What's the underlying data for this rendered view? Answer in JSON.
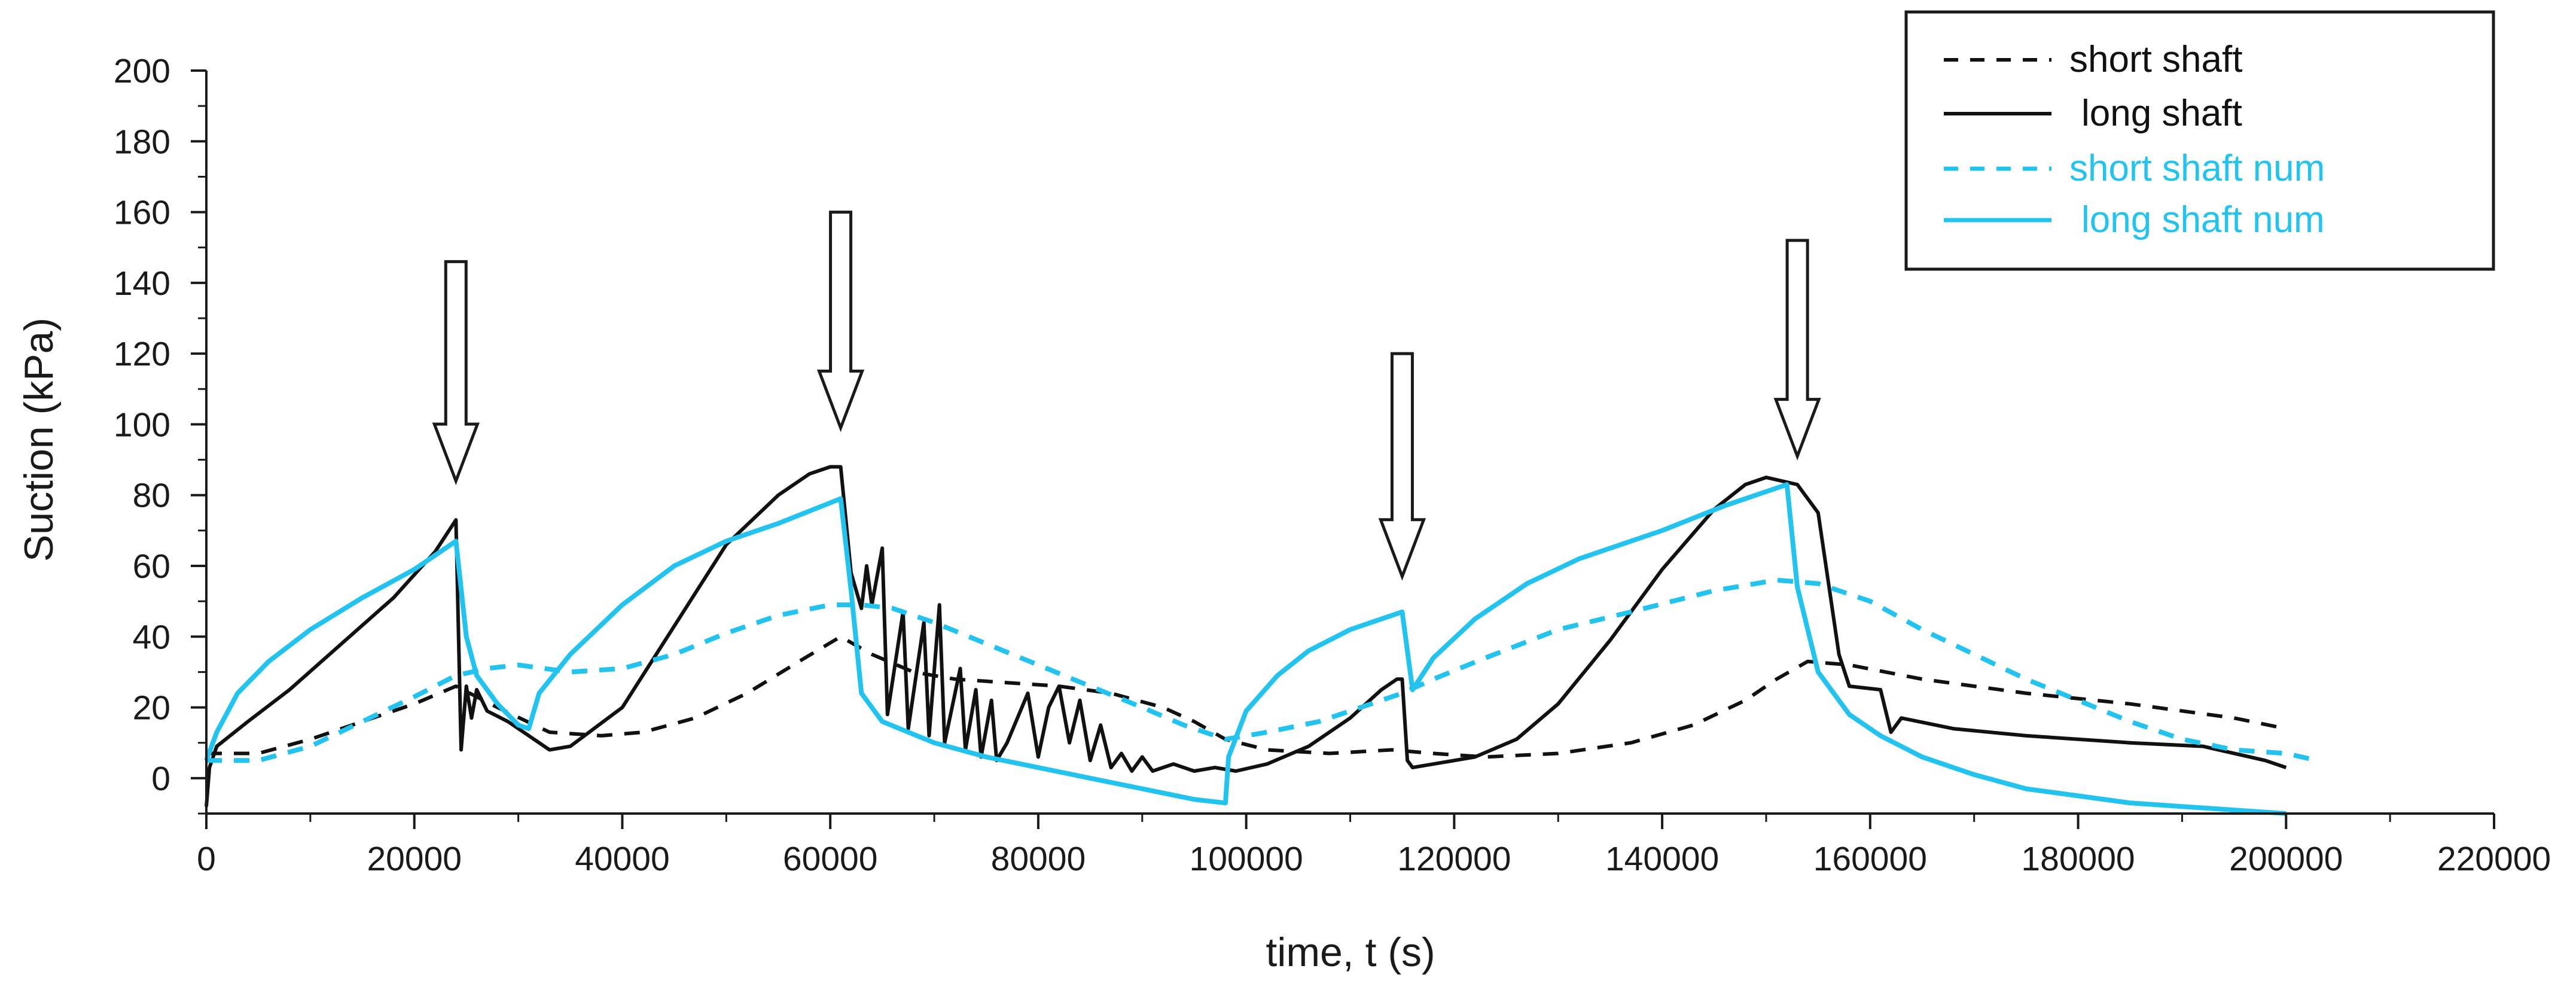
{
  "chart_data": {
    "type": "line",
    "xlabel": "time, t (s)",
    "ylabel": "Suction (kPa)",
    "xlim": [
      0,
      220000
    ],
    "ylim": [
      -10,
      200
    ],
    "xticks": [
      0,
      20000,
      40000,
      60000,
      80000,
      100000,
      120000,
      140000,
      160000,
      180000,
      200000,
      220000
    ],
    "xtick_labels": [
      "0",
      "20000",
      "40000",
      "60000",
      "80000",
      "100000",
      "120000",
      "140000",
      "160000",
      "180000",
      "200000",
      "220000"
    ],
    "yticks": [
      0,
      20,
      40,
      60,
      80,
      100,
      120,
      140,
      160,
      180,
      200
    ],
    "ytick_labels": [
      "0",
      "20",
      "40",
      "60",
      "80",
      "100",
      "120",
      "140",
      "160",
      "180",
      "200"
    ],
    "grid": false,
    "legend_position": "top-right",
    "series": [
      {
        "name": "short shaft",
        "color": "#111111",
        "style": "dashed",
        "points": [
          [
            0,
            7
          ],
          [
            5000,
            7
          ],
          [
            10000,
            11
          ],
          [
            15000,
            16
          ],
          [
            20000,
            21
          ],
          [
            24000,
            26
          ],
          [
            28000,
            20
          ],
          [
            33000,
            13
          ],
          [
            38000,
            12
          ],
          [
            42000,
            13
          ],
          [
            47000,
            17
          ],
          [
            52000,
            24
          ],
          [
            57000,
            33
          ],
          [
            61000,
            40
          ],
          [
            64000,
            35
          ],
          [
            68000,
            30
          ],
          [
            72000,
            28
          ],
          [
            77000,
            27
          ],
          [
            82000,
            26
          ],
          [
            87000,
            24
          ],
          [
            92000,
            20
          ],
          [
            95000,
            16
          ],
          [
            98000,
            11
          ],
          [
            102000,
            8
          ],
          [
            108000,
            7
          ],
          [
            114000,
            8
          ],
          [
            118000,
            7
          ],
          [
            123000,
            6
          ],
          [
            130000,
            7
          ],
          [
            137000,
            10
          ],
          [
            143000,
            15
          ],
          [
            148000,
            22
          ],
          [
            151000,
            28
          ],
          [
            154000,
            33
          ],
          [
            158000,
            32
          ],
          [
            165000,
            28
          ],
          [
            175000,
            24
          ],
          [
            185000,
            21
          ],
          [
            195000,
            17
          ],
          [
            200000,
            14
          ]
        ]
      },
      {
        "name": "long shaft",
        "color": "#111111",
        "style": "solid",
        "points": [
          [
            0,
            -8
          ],
          [
            300,
            3
          ],
          [
            1000,
            9
          ],
          [
            4000,
            16
          ],
          [
            8000,
            25
          ],
          [
            13000,
            38
          ],
          [
            18000,
            51
          ],
          [
            22000,
            64
          ],
          [
            24000,
            73
          ],
          [
            24500,
            8
          ],
          [
            25000,
            26
          ],
          [
            25500,
            17
          ],
          [
            26000,
            25
          ],
          [
            27000,
            19
          ],
          [
            29000,
            16
          ],
          [
            33000,
            8
          ],
          [
            35000,
            9
          ],
          [
            40000,
            20
          ],
          [
            45000,
            43
          ],
          [
            50000,
            66
          ],
          [
            55000,
            80
          ],
          [
            58000,
            86
          ],
          [
            60000,
            88
          ],
          [
            61000,
            88
          ],
          [
            62000,
            58
          ],
          [
            63000,
            48
          ],
          [
            63500,
            60
          ],
          [
            64000,
            49
          ],
          [
            65000,
            65
          ],
          [
            65500,
            18
          ],
          [
            67000,
            47
          ],
          [
            67500,
            14
          ],
          [
            69000,
            44
          ],
          [
            69500,
            12
          ],
          [
            70500,
            49
          ],
          [
            71000,
            10
          ],
          [
            72500,
            31
          ],
          [
            73000,
            8
          ],
          [
            74000,
            25
          ],
          [
            74500,
            6
          ],
          [
            75500,
            22
          ],
          [
            76000,
            5
          ],
          [
            77000,
            10
          ],
          [
            79000,
            24
          ],
          [
            80000,
            6
          ],
          [
            81000,
            20
          ],
          [
            82000,
            26
          ],
          [
            83000,
            10
          ],
          [
            84000,
            22
          ],
          [
            85000,
            5
          ],
          [
            86000,
            15
          ],
          [
            87000,
            3
          ],
          [
            88000,
            7
          ],
          [
            89000,
            2
          ],
          [
            90000,
            6
          ],
          [
            91000,
            2
          ],
          [
            93000,
            4
          ],
          [
            95000,
            2
          ],
          [
            97000,
            3
          ],
          [
            99000,
            2
          ],
          [
            102000,
            4
          ],
          [
            106000,
            9
          ],
          [
            110000,
            17
          ],
          [
            113000,
            25
          ],
          [
            114500,
            28
          ],
          [
            115000,
            28
          ],
          [
            115500,
            5
          ],
          [
            116000,
            3
          ],
          [
            118000,
            4
          ],
          [
            122000,
            6
          ],
          [
            126000,
            11
          ],
          [
            130000,
            21
          ],
          [
            135000,
            39
          ],
          [
            140000,
            59
          ],
          [
            145000,
            76
          ],
          [
            148000,
            83
          ],
          [
            150000,
            85
          ],
          [
            153000,
            83
          ],
          [
            155000,
            75
          ],
          [
            156000,
            55
          ],
          [
            157000,
            35
          ],
          [
            158000,
            26
          ],
          [
            161000,
            25
          ],
          [
            162000,
            13
          ],
          [
            163000,
            17
          ],
          [
            168000,
            14
          ],
          [
            175000,
            12
          ],
          [
            185000,
            10
          ],
          [
            192000,
            9
          ],
          [
            198000,
            5
          ],
          [
            200000,
            3
          ]
        ]
      },
      {
        "name": "short shaft num",
        "color": "#22c3ee",
        "style": "dashed",
        "points": [
          [
            0,
            5
          ],
          [
            5000,
            5
          ],
          [
            10000,
            9
          ],
          [
            15000,
            16
          ],
          [
            20000,
            23
          ],
          [
            24000,
            29
          ],
          [
            27000,
            31
          ],
          [
            30000,
            32
          ],
          [
            35000,
            30
          ],
          [
            40000,
            31
          ],
          [
            45000,
            35
          ],
          [
            50000,
            41
          ],
          [
            55000,
            46
          ],
          [
            60000,
            49
          ],
          [
            63000,
            49
          ],
          [
            66000,
            48
          ],
          [
            70000,
            44
          ],
          [
            75000,
            38
          ],
          [
            80000,
            32
          ],
          [
            85000,
            26
          ],
          [
            90000,
            20
          ],
          [
            94000,
            15
          ],
          [
            98000,
            11
          ],
          [
            102000,
            13
          ],
          [
            107000,
            16
          ],
          [
            112000,
            21
          ],
          [
            115000,
            24
          ],
          [
            118000,
            28
          ],
          [
            123000,
            34
          ],
          [
            130000,
            42
          ],
          [
            137000,
            47
          ],
          [
            145000,
            53
          ],
          [
            151000,
            56
          ],
          [
            155000,
            55
          ],
          [
            160000,
            50
          ],
          [
            165000,
            42
          ],
          [
            170000,
            35
          ],
          [
            175000,
            28
          ],
          [
            180000,
            22
          ],
          [
            185000,
            16
          ],
          [
            190000,
            11
          ],
          [
            195000,
            8
          ],
          [
            200000,
            7
          ],
          [
            203000,
            5
          ]
        ]
      },
      {
        "name": "long shaft num",
        "color": "#22c3ee",
        "style": "solid",
        "points": [
          [
            0,
            5
          ],
          [
            1000,
            13
          ],
          [
            3000,
            24
          ],
          [
            6000,
            33
          ],
          [
            10000,
            42
          ],
          [
            15000,
            51
          ],
          [
            20000,
            59
          ],
          [
            24000,
            67
          ],
          [
            25000,
            40
          ],
          [
            26000,
            29
          ],
          [
            28000,
            21
          ],
          [
            30000,
            15
          ],
          [
            31000,
            14
          ],
          [
            32000,
            24
          ],
          [
            35000,
            35
          ],
          [
            40000,
            49
          ],
          [
            45000,
            60
          ],
          [
            50000,
            67
          ],
          [
            55000,
            72
          ],
          [
            61000,
            79
          ],
          [
            62000,
            53
          ],
          [
            63000,
            24
          ],
          [
            65000,
            16
          ],
          [
            70000,
            10
          ],
          [
            75000,
            6
          ],
          [
            80000,
            3
          ],
          [
            85000,
            0
          ],
          [
            90000,
            -3
          ],
          [
            95000,
            -6
          ],
          [
            98000,
            -7
          ],
          [
            98300,
            6
          ],
          [
            100000,
            19
          ],
          [
            103000,
            29
          ],
          [
            106000,
            36
          ],
          [
            110000,
            42
          ],
          [
            114000,
            46
          ],
          [
            115000,
            47
          ],
          [
            116000,
            25
          ],
          [
            118000,
            34
          ],
          [
            122000,
            45
          ],
          [
            127000,
            55
          ],
          [
            132000,
            62
          ],
          [
            140000,
            70
          ],
          [
            146000,
            77
          ],
          [
            152000,
            83
          ],
          [
            153000,
            54
          ],
          [
            155000,
            30
          ],
          [
            158000,
            18
          ],
          [
            161000,
            12
          ],
          [
            165000,
            6
          ],
          [
            170000,
            1
          ],
          [
            175000,
            -3
          ],
          [
            180000,
            -5
          ],
          [
            185000,
            -7
          ],
          [
            190000,
            -8
          ],
          [
            195000,
            -9
          ],
          [
            200000,
            -10
          ]
        ]
      }
    ],
    "annotations": [
      {
        "type": "down-arrow",
        "x": 24000,
        "y_top": 146,
        "y_tip": 84
      },
      {
        "type": "down-arrow",
        "x": 61000,
        "y_top": 160,
        "y_tip": 99
      },
      {
        "type": "down-arrow",
        "x": 115000,
        "y_top": 120,
        "y_tip": 57
      },
      {
        "type": "down-arrow",
        "x": 153000,
        "y_top": 152,
        "y_tip": 91
      }
    ]
  }
}
